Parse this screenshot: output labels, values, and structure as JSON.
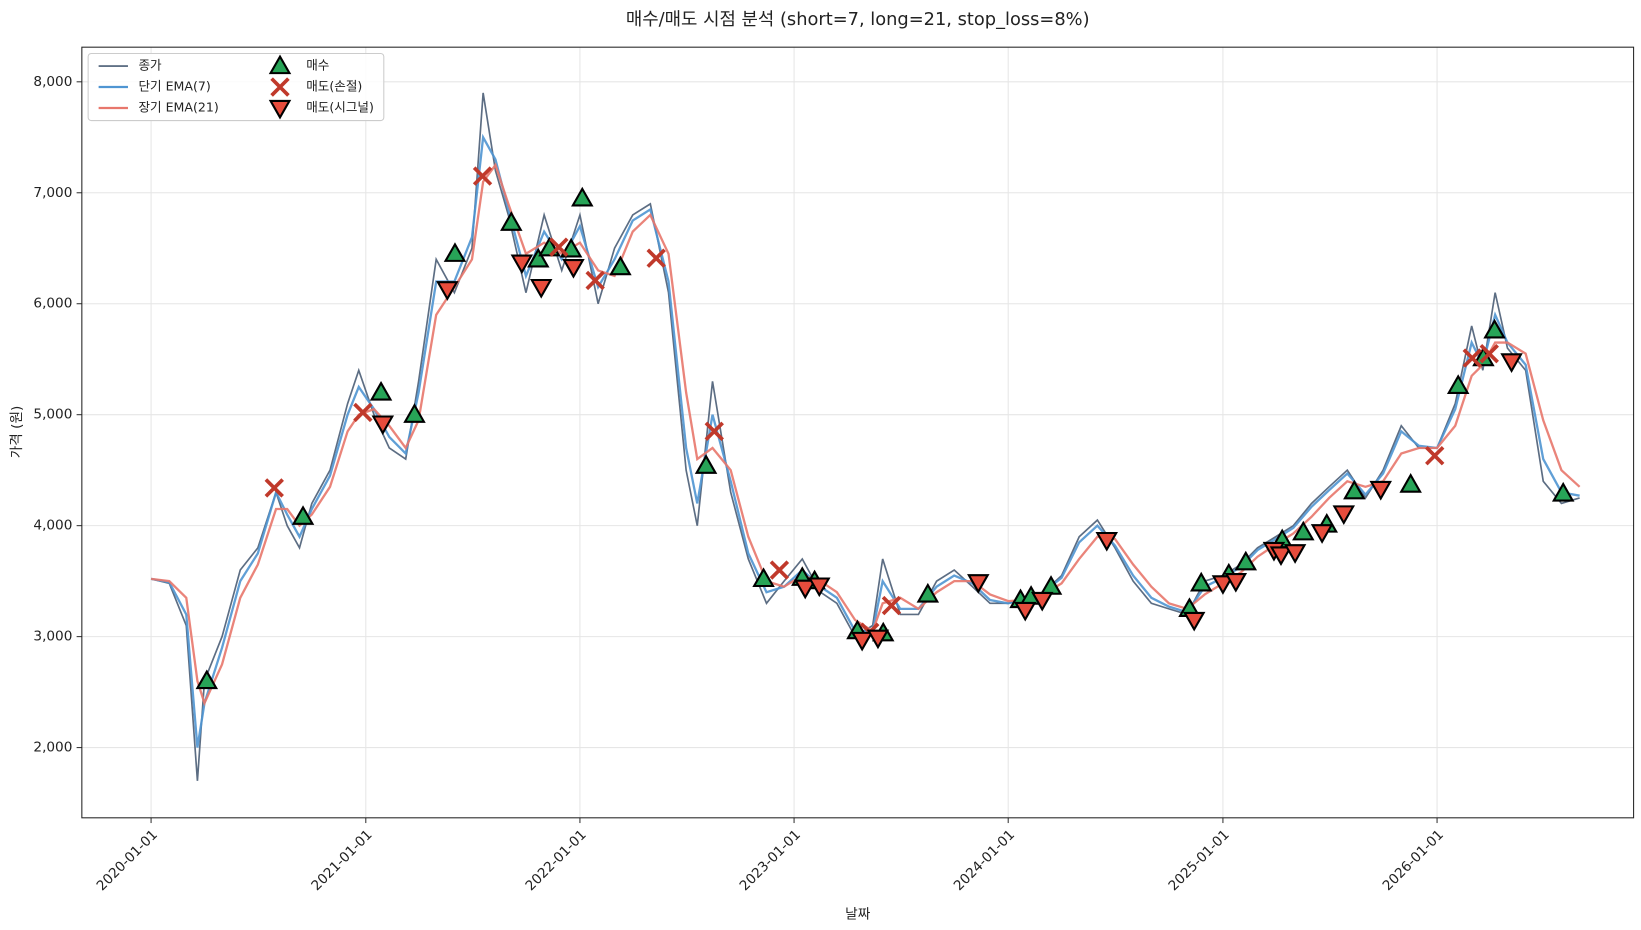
{
  "chart_data": {
    "type": "line",
    "title": "매수/매도 시점 분석 (short=7, long=21, stop_loss=8%)",
    "xlabel": "날짜",
    "ylabel": "가격 (원)",
    "x": [
      "2020-01-01",
      "2020-02-01",
      "2020-03-01",
      "2020-03-20",
      "2020-04-01",
      "2020-05-01",
      "2020-06-01",
      "2020-07-01",
      "2020-08-01",
      "2020-08-20",
      "2020-09-10",
      "2020-10-01",
      "2020-11-01",
      "2020-12-01",
      "2020-12-20",
      "2021-01-15",
      "2021-02-10",
      "2021-03-10",
      "2021-04-01",
      "2021-05-01",
      "2021-06-01",
      "2021-07-01",
      "2021-07-20",
      "2021-08-10",
      "2021-09-01",
      "2021-10-01",
      "2021-11-01",
      "2021-12-01",
      "2022-01-01",
      "2022-02-01",
      "2022-03-01",
      "2022-04-01",
      "2022-05-01",
      "2022-06-01",
      "2022-07-01",
      "2022-07-20",
      "2022-08-15",
      "2022-09-15",
      "2022-10-15",
      "2022-11-15",
      "2022-12-15",
      "2023-01-15",
      "2023-02-15",
      "2023-03-15",
      "2023-04-15",
      "2023-05-15",
      "2023-06-01",
      "2023-07-01",
      "2023-08-01",
      "2023-09-01",
      "2023-10-01",
      "2023-11-01",
      "2023-12-01",
      "2024-01-01",
      "2024-02-01",
      "2024-03-01",
      "2024-04-01",
      "2024-05-01",
      "2024-06-01",
      "2024-07-01",
      "2024-08-01",
      "2024-09-01",
      "2024-10-01",
      "2024-11-01",
      "2024-12-01",
      "2025-01-01",
      "2025-02-01",
      "2025-03-01",
      "2025-04-01",
      "2025-05-01",
      "2025-06-01",
      "2025-07-01",
      "2025-08-01",
      "2025-09-01",
      "2025-10-01",
      "2025-11-01",
      "2025-12-01",
      "2026-01-01",
      "2026-02-01",
      "2026-03-01",
      "2026-03-20",
      "2026-04-10",
      "2026-05-01",
      "2026-06-01",
      "2026-07-01",
      "2026-08-01",
      "2026-09-01"
    ],
    "series": [
      {
        "name": "종가",
        "color": "#4a5d75",
        "width": 1.6,
        "values": [
          3520,
          3480,
          3100,
          1700,
          2600,
          3000,
          3600,
          3800,
          4300,
          4000,
          3800,
          4200,
          4500,
          5100,
          5400,
          5000,
          4700,
          4600,
          5300,
          6400,
          6100,
          6500,
          7900,
          7200,
          6800,
          6100,
          6800,
          6300,
          6800,
          6000,
          6500,
          6800,
          6900,
          6100,
          4500,
          4000,
          5300,
          4300,
          3700,
          3300,
          3500,
          3700,
          3400,
          3300,
          3000,
          3100,
          3700,
          3200,
          3200,
          3500,
          3600,
          3450,
          3300,
          3300,
          3350,
          3400,
          3550,
          3900,
          4050,
          3800,
          3500,
          3300,
          3250,
          3200,
          3500,
          3550,
          3650,
          3800,
          3900,
          4000,
          4200,
          4350,
          4500,
          4250,
          4500,
          4900,
          4700,
          4700,
          5100,
          5800,
          5400,
          6100,
          5600,
          5400,
          4400,
          4200,
          4250
        ]
      },
      {
        "name": "단기 EMA(7)",
        "color": "#4f95d2",
        "width": 2.2,
        "values": [
          3520,
          3490,
          3200,
          2000,
          2400,
          2900,
          3500,
          3750,
          4300,
          4100,
          3900,
          4150,
          4450,
          5000,
          5250,
          5050,
          4800,
          4650,
          5200,
          6200,
          6200,
          6600,
          7500,
          7300,
          6850,
          6250,
          6650,
          6400,
          6700,
          6150,
          6400,
          6750,
          6850,
          6200,
          4700,
          4200,
          5000,
          4400,
          3750,
          3400,
          3450,
          3600,
          3450,
          3350,
          3050,
          3050,
          3500,
          3250,
          3250,
          3450,
          3550,
          3480,
          3330,
          3300,
          3340,
          3400,
          3530,
          3850,
          4000,
          3820,
          3550,
          3350,
          3270,
          3220,
          3450,
          3530,
          3630,
          3780,
          3880,
          3980,
          4170,
          4320,
          4470,
          4280,
          4470,
          4850,
          4720,
          4700,
          5050,
          5650,
          5450,
          5900,
          5650,
          5450,
          4600,
          4300,
          4270
        ]
      },
      {
        "name": "장기 EMA(21)",
        "color": "#e8776c",
        "width": 2.2,
        "values": [
          3520,
          3500,
          3350,
          2600,
          2400,
          2750,
          3350,
          3650,
          4150,
          4150,
          4000,
          4100,
          4350,
          4850,
          5000,
          5050,
          4900,
          4700,
          4950,
          5900,
          6150,
          6400,
          7100,
          7250,
          6900,
          6450,
          6550,
          6450,
          6550,
          6300,
          6250,
          6650,
          6800,
          6450,
          5200,
          4600,
          4700,
          4500,
          3900,
          3500,
          3450,
          3550,
          3500,
          3400,
          3150,
          3050,
          3300,
          3350,
          3250,
          3400,
          3500,
          3500,
          3380,
          3320,
          3330,
          3380,
          3480,
          3700,
          3900,
          3880,
          3650,
          3450,
          3300,
          3250,
          3380,
          3480,
          3580,
          3720,
          3830,
          3930,
          4080,
          4250,
          4400,
          4350,
          4400,
          4650,
          4700,
          4700,
          4900,
          5350,
          5450,
          5650,
          5650,
          5550,
          4950,
          4500,
          4350
        ]
      },
      {
        "name": "매수",
        "marker": "^",
        "color": "#27a457",
        "x": [
          "2020-04-05",
          "2020-09-16",
          "2021-01-27",
          "2021-03-25",
          "2021-06-02",
          "2021-09-06",
          "2021-10-22",
          "2021-11-10",
          "2021-12-17",
          "2022-01-05",
          "2022-03-11",
          "2022-08-04",
          "2022-11-10",
          "2023-01-15",
          "2023-02-05",
          "2023-04-19",
          "2023-06-02",
          "2023-08-17",
          "2024-01-22",
          "2024-02-09",
          "2024-03-14",
          "2024-11-05",
          "2024-11-25",
          "2025-01-11",
          "2025-02-09",
          "2025-04-12",
          "2025-05-18",
          "2025-06-27",
          "2025-08-13",
          "2025-11-17",
          "2026-02-06",
          "2026-03-21",
          "2026-04-09",
          "2026-08-04"
        ],
        "values": [
          2600,
          4080,
          5200,
          5000,
          6450,
          6730,
          6400,
          6500,
          6490,
          6950,
          6330,
          4540,
          3520,
          3530,
          3500,
          3050,
          3030,
          3380,
          3330,
          3360,
          3450,
          3250,
          3480,
          3560,
          3670,
          3870,
          3940,
          4010,
          4310,
          4370,
          5260,
          5510,
          5760,
          4290
        ]
      },
      {
        "name": "매도(손절)",
        "marker": "x",
        "color": "#c0392b",
        "x": [
          "2020-07-29",
          "2020-12-27",
          "2021-07-19",
          "2021-11-26",
          "2022-01-27",
          "2022-05-11",
          "2022-08-18",
          "2022-12-07",
          "2023-05-10",
          "2023-06-16",
          "2025-12-28",
          "2026-03-02",
          "2026-03-31"
        ],
        "values": [
          4340,
          5020,
          7150,
          6510,
          6210,
          6410,
          4850,
          3600,
          3040,
          3280,
          4630,
          5510,
          5550
        ]
      },
      {
        "name": "매도(시그널)",
        "marker": "v",
        "color": "#e74c3c",
        "x": [
          "2021-01-30",
          "2021-05-20",
          "2021-09-24",
          "2021-10-27",
          "2021-12-21",
          "2023-01-20",
          "2023-02-13",
          "2023-04-27",
          "2023-05-24",
          "2023-11-11",
          "2024-01-30",
          "2024-02-28",
          "2024-06-17",
          "2024-11-13",
          "2025-01-01",
          "2025-01-23",
          "2025-03-29",
          "2025-04-10",
          "2025-05-04",
          "2025-06-19",
          "2025-07-26",
          "2025-09-27",
          "2026-05-08"
        ],
        "values": [
          4920,
          6130,
          6370,
          6150,
          6330,
          3440,
          3460,
          2970,
          2990,
          3490,
          3240,
          3330,
          3870,
          3150,
          3480,
          3500,
          3780,
          3740,
          3760,
          3940,
          4110,
          4330,
          5480
        ]
      }
    ],
    "xlim": [
      "2019-09-05",
      "2026-12-02"
    ],
    "xticks": [
      "2020-01-01",
      "2021-01-01",
      "2022-01-01",
      "2023-01-01",
      "2024-01-01",
      "2025-01-01",
      "2026-01-01"
    ],
    "ylim": [
      1367,
      8312
    ],
    "yticks": [
      {
        "value": 2000,
        "label": "2,000"
      },
      {
        "value": 3000,
        "label": "3,000"
      },
      {
        "value": 4000,
        "label": "4,000"
      },
      {
        "value": 5000,
        "label": "5,000"
      },
      {
        "value": 6000,
        "label": "6,000"
      },
      {
        "value": 7000,
        "label": "7,000"
      },
      {
        "value": 8000,
        "label": "8,000"
      }
    ],
    "grid": true,
    "legend": "upper left"
  }
}
